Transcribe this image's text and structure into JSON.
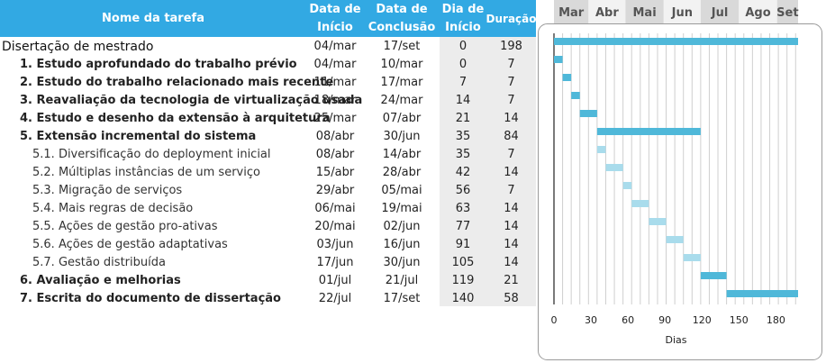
{
  "table": {
    "headers": {
      "name": "Nome da tarefa",
      "start": "Data de\nInício",
      "end": "Data de\nConclusão",
      "day": "Dia de\nInício",
      "duration": "Duração"
    },
    "rows": [
      {
        "level": 0,
        "name": "Disertação de mestrado",
        "start": "04/mar",
        "end": "17/set",
        "day": "0",
        "duration": "198"
      },
      {
        "level": 1,
        "name": "1. Estudo aprofundado do trabalho prévio",
        "start": "04/mar",
        "end": "10/mar",
        "day": "0",
        "duration": "7"
      },
      {
        "level": 1,
        "name": "2. Estudo do trabalho relacionado mais recente",
        "start": "11/mar",
        "end": "17/mar",
        "day": "7",
        "duration": "7"
      },
      {
        "level": 1,
        "name": "3. Reavaliação da tecnologia de virtualização usada",
        "start": "18/mar",
        "end": "24/mar",
        "day": "14",
        "duration": "7"
      },
      {
        "level": 1,
        "name": "4. Estudo e desenho da extensão à arquitetura",
        "start": "25/mar",
        "end": "07/abr",
        "day": "21",
        "duration": "14"
      },
      {
        "level": 1,
        "name": "5. Extensão incremental do sistema",
        "start": "08/abr",
        "end": "30/jun",
        "day": "35",
        "duration": "84"
      },
      {
        "level": 2,
        "name": "5.1. Diversificação do deployment inicial",
        "start": "08/abr",
        "end": "14/abr",
        "day": "35",
        "duration": "7"
      },
      {
        "level": 2,
        "name": "5.2. Múltiplas instâncias de um serviço",
        "start": "15/abr",
        "end": "28/abr",
        "day": "42",
        "duration": "14"
      },
      {
        "level": 2,
        "name": "5.3. Migração de serviços",
        "start": "29/abr",
        "end": "05/mai",
        "day": "56",
        "duration": "7"
      },
      {
        "level": 2,
        "name": "5.4. Mais regras de decisão",
        "start": "06/mai",
        "end": "19/mai",
        "day": "63",
        "duration": "14"
      },
      {
        "level": 2,
        "name": "5.5. Ações de gestão pro-ativas",
        "start": "20/mai",
        "end": "02/jun",
        "day": "77",
        "duration": "14"
      },
      {
        "level": 2,
        "name": "5.6. Ações de gestão adaptativas",
        "start": "03/jun",
        "end": "16/jun",
        "day": "91",
        "duration": "14"
      },
      {
        "level": 2,
        "name": "5.7. Gestão distribuída",
        "start": "17/jun",
        "end": "30/jun",
        "day": "105",
        "duration": "14"
      },
      {
        "level": 1,
        "name": "6. Avaliação e melhorias",
        "start": "01/jul",
        "end": "21/jul",
        "day": "119",
        "duration": "21"
      },
      {
        "level": 1,
        "name": "7. Escrita do documento de dissertação",
        "start": "22/jul",
        "end": "17/set",
        "day": "140",
        "duration": "58"
      }
    ]
  },
  "colors": {
    "header_bg": "#32a9e3",
    "bar_main": "#4fb8d9",
    "bar_sub": "#a9dcec",
    "month_band_dark": "#d9d9d9",
    "month_band_light": "#f2f2f2",
    "grid": "#cfcfcf"
  },
  "chart_data": {
    "type": "bar",
    "orientation": "horizontal-gantt",
    "xlabel": "Dias",
    "xlim": [
      0,
      198
    ],
    "xticks": [
      0,
      30,
      60,
      90,
      120,
      150,
      180
    ],
    "grid": true,
    "months": [
      "Mar",
      "Abr",
      "Mai",
      "Jun",
      "Jul",
      "Ago",
      "Set"
    ],
    "month_starts": [
      0,
      28,
      58,
      89,
      119,
      150,
      181
    ],
    "month_ends": [
      28,
      58,
      89,
      119,
      150,
      181,
      198
    ],
    "tasks": [
      {
        "start": 0,
        "duration": 198,
        "kind": "main"
      },
      {
        "start": 0,
        "duration": 7,
        "kind": "main"
      },
      {
        "start": 7,
        "duration": 7,
        "kind": "main"
      },
      {
        "start": 14,
        "duration": 7,
        "kind": "main"
      },
      {
        "start": 21,
        "duration": 14,
        "kind": "main"
      },
      {
        "start": 35,
        "duration": 84,
        "kind": "main"
      },
      {
        "start": 35,
        "duration": 7,
        "kind": "sub"
      },
      {
        "start": 42,
        "duration": 14,
        "kind": "sub"
      },
      {
        "start": 56,
        "duration": 7,
        "kind": "sub"
      },
      {
        "start": 63,
        "duration": 14,
        "kind": "sub"
      },
      {
        "start": 77,
        "duration": 14,
        "kind": "sub"
      },
      {
        "start": 91,
        "duration": 14,
        "kind": "sub"
      },
      {
        "start": 105,
        "duration": 14,
        "kind": "sub"
      },
      {
        "start": 119,
        "duration": 21,
        "kind": "main"
      },
      {
        "start": 140,
        "duration": 58,
        "kind": "main"
      }
    ]
  }
}
